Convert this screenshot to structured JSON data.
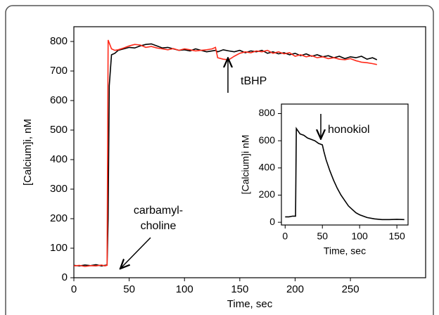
{
  "chart_data": [
    {
      "type": "line",
      "xlabel": "Time, sec",
      "ylabel": "[Calcium]i, nM",
      "x": [
        0,
        5,
        10,
        15,
        20,
        25,
        28,
        30,
        31,
        32,
        34,
        37,
        40,
        45,
        50,
        55,
        60,
        65,
        70,
        75,
        80,
        85,
        90,
        95,
        100,
        105,
        110,
        115,
        120,
        125,
        128,
        130,
        135,
        140,
        145,
        150,
        155,
        160,
        165,
        170,
        175,
        180,
        185,
        190,
        195,
        200,
        205,
        210,
        215,
        220,
        225,
        230,
        235,
        240,
        245,
        250,
        255,
        260,
        265,
        270,
        274
      ],
      "series": [
        {
          "color": "#000000",
          "values": [
            42,
            40,
            43,
            41,
            44,
            40,
            42,
            43,
            200,
            650,
            755,
            760,
            770,
            775,
            780,
            778,
            785,
            790,
            792,
            785,
            778,
            780,
            775,
            770,
            772,
            768,
            775,
            770,
            765,
            768,
            770,
            765,
            772,
            768,
            765,
            770,
            762,
            768,
            765,
            770,
            760,
            765,
            758,
            762,
            755,
            760,
            752,
            758,
            750,
            755,
            748,
            752,
            745,
            750,
            742,
            748,
            745,
            750,
            740,
            745,
            738
          ]
        },
        {
          "color": "#ff2a1a",
          "values": [
            40,
            42,
            38,
            41,
            40,
            43,
            40,
            42,
            805,
            795,
            775,
            770,
            772,
            778,
            785,
            790,
            788,
            780,
            783,
            778,
            775,
            772,
            776,
            770,
            775,
            772,
            768,
            770,
            772,
            775,
            780,
            745,
            740,
            738,
            750,
            760,
            765,
            762,
            768,
            765,
            770,
            760,
            765,
            758,
            762,
            750,
            755,
            748,
            752,
            745,
            748,
            742,
            745,
            740,
            738,
            742,
            735,
            730,
            728,
            725,
            722
          ]
        }
      ],
      "xlim": [
        0,
        318
      ],
      "xticks": [
        0,
        50,
        100,
        150,
        200,
        250
      ],
      "ylim": [
        0,
        850
      ],
      "yticks": [
        0,
        100,
        200,
        300,
        400,
        500,
        600,
        700,
        800
      ],
      "annotations": [
        {
          "lines": [
            "tBHP"
          ]
        },
        {
          "lines": [
            "carbamyl-",
            "choline"
          ]
        }
      ]
    },
    {
      "type": "line",
      "xlabel": "Time, sec",
      "ylabel": "[Calcium]i nM",
      "x": [
        0,
        5,
        10,
        14,
        15,
        20,
        25,
        30,
        35,
        40,
        45,
        50,
        52,
        55,
        60,
        65,
        70,
        75,
        80,
        85,
        90,
        95,
        100,
        110,
        120,
        130,
        140,
        150,
        160
      ],
      "series": [
        {
          "color": "#000000",
          "values": [
            40,
            40,
            45,
            45,
            690,
            650,
            640,
            620,
            610,
            600,
            580,
            570,
            520,
            460,
            380,
            310,
            250,
            200,
            160,
            120,
            95,
            70,
            55,
            35,
            25,
            20,
            20,
            22,
            20
          ]
        }
      ],
      "xlim": [
        -5,
        165
      ],
      "xticks": [
        0,
        50,
        100,
        150
      ],
      "ylim": [
        -20,
        870
      ],
      "yticks": [
        0,
        200,
        400,
        600,
        800
      ],
      "annotations": [
        {
          "lines": [
            "honokiol"
          ]
        }
      ]
    }
  ]
}
